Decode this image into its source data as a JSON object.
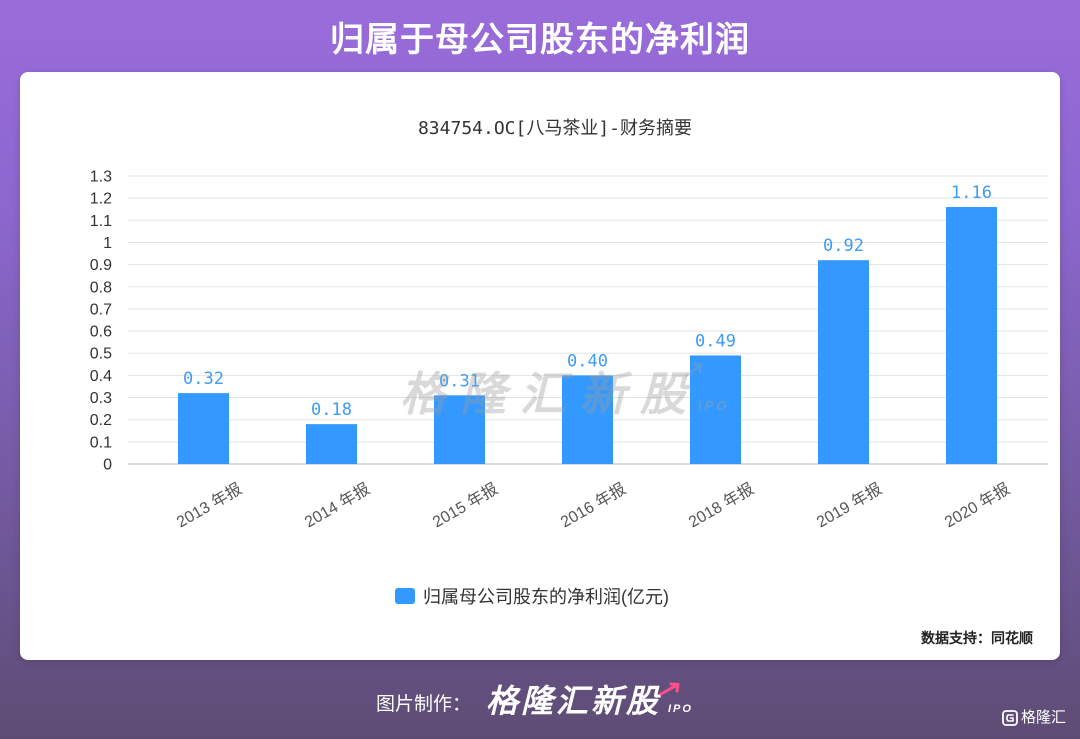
{
  "page": {
    "title": "归属于母公司股东的净利润"
  },
  "chart_data": {
    "type": "bar",
    "title": "834754.OC[八马茶业]-财务摘要",
    "xlabel": "",
    "ylabel": "",
    "categories": [
      "2013 年报",
      "2014 年报",
      "2015 年报",
      "2016 年报",
      "2018 年报",
      "2019 年报",
      "2020 年报"
    ],
    "series": [
      {
        "name": "归属母公司股东的净利润(亿元)",
        "values": [
          0.32,
          0.18,
          0.31,
          0.4,
          0.49,
          0.92,
          1.16
        ],
        "data_labels": [
          "0.32",
          "0.18",
          "0.31",
          "0.40",
          "0.49",
          "0.92",
          "1.16"
        ]
      }
    ],
    "ylim": [
      0,
      1.3
    ],
    "y_ticks": [
      0,
      0.1,
      0.2,
      0.3,
      0.4,
      0.5,
      0.6,
      0.7,
      0.8,
      0.9,
      1,
      1.1,
      1.2,
      1.3
    ],
    "y_tick_labels": [
      "0",
      "0.1",
      "0.2",
      "0.3",
      "0.4",
      "0.5",
      "0.6",
      "0.7",
      "0.8",
      "0.9",
      "1",
      "1.1",
      "1.2",
      "1.3"
    ],
    "grid": true,
    "legend_position": "bottom"
  },
  "watermark": {
    "text": "格隆汇新股",
    "sub": "IPO"
  },
  "source": {
    "text": "数据支持：同花顺"
  },
  "footer": {
    "label": "图片制作：",
    "logo": "格隆汇新股",
    "logo_sub": "IPO"
  },
  "corner_logo": {
    "text": "格隆汇",
    "icon": "gelonghui-logo-icon"
  },
  "colors": {
    "bar": "#3399ff",
    "data_label": "#3d9cf5",
    "accent_arrow": "#ff4f8b"
  }
}
